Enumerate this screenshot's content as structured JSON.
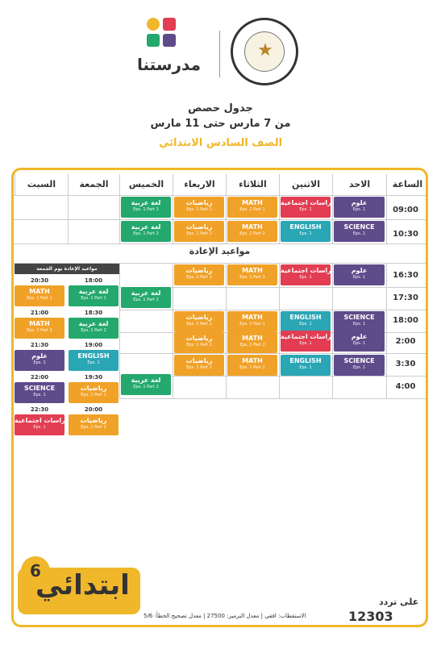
{
  "header": {
    "brand_name": "مدرستنا",
    "ministry_seal_text": "MINISTRY OF EDUCATION AND TECHNICAL EDUCATION",
    "title_line1": "جدول حصص",
    "title_line2": "من 7 مارس حتى 11 مارس",
    "title_line3": "الصف السادس الابتدائي"
  },
  "columns": [
    "الساعة",
    "الاحد",
    "الاثنين",
    "الثلاثاء",
    "الاربعاء",
    "الخميس",
    "الجمعة",
    "السبت"
  ],
  "main_times": [
    "09:00",
    "10:30"
  ],
  "main_cells": [
    {
      "name": "علوم",
      "ep": "Eps. 1"
    },
    {
      "name": "دراسات اجتماعية",
      "ep": "Eps. 1"
    },
    {
      "name": "MATH",
      "ep": "Eps. 1 Part 1"
    },
    {
      "name": "رياضيات",
      "ep": "Eps. 1 Part 1"
    },
    {
      "name": "لغة عربية",
      "ep": "Eps. 1 Part 1"
    },
    {
      "name": "SCIENCE",
      "ep": "Eps. 1"
    },
    {
      "name": "ENGLISH",
      "ep": "Eps. 1"
    },
    {
      "name": "MATH",
      "ep": "Eps. 1 Part 2"
    },
    {
      "name": "رياضيات",
      "ep": "Eps. 1 Part 2"
    },
    {
      "name": "لغة عربية",
      "ep": "Eps. 1 Part 2"
    }
  ],
  "rerun": {
    "title": "مواعيد الإعادة",
    "times": [
      "16:30",
      "17:30",
      "18:00",
      "2:00",
      "3:30",
      "4:00"
    ],
    "cells": [
      {
        "name": "علوم",
        "ep": "Eps. 1"
      },
      {
        "name": "دراسات اجتماعية",
        "ep": "Eps. 1"
      },
      {
        "name": "MATH",
        "ep": "Eps. 1 Part 1"
      },
      {
        "name": "رياضيات",
        "ep": "Eps. 1 Part 1"
      },
      {
        "name": "لغة عربية",
        "ep": "Eps. 1 Part 1"
      },
      {
        "name": "SCIENCE",
        "ep": "Eps. 1"
      },
      {
        "name": "ENGLISH",
        "ep": "Eps. 1"
      },
      {
        "name": "MATH",
        "ep": "Eps. 1 Part 1"
      },
      {
        "name": "رياضيات",
        "ep": "Eps. 1 Part 1"
      },
      {
        "name": "علوم",
        "ep": "Eps. 1"
      },
      {
        "name": "دراسات اجتماعية",
        "ep": "Eps. 1"
      },
      {
        "name": "MATH",
        "ep": "Eps. 1 Part 2"
      },
      {
        "name": "رياضيات",
        "ep": "Eps. 1 Part 2"
      },
      {
        "name": "SCIENCE",
        "ep": "Eps. 1"
      },
      {
        "name": "ENGLISH",
        "ep": "Eps. 1"
      },
      {
        "name": "MATH",
        "ep": "Eps. 1 Part 2"
      },
      {
        "name": "رياضيات",
        "ep": "Eps. 1 Part 2"
      },
      {
        "name": "لغة عربية",
        "ep": "Eps. 1 Part 2"
      }
    ]
  },
  "friday_sat": {
    "title": "مواعيد الإعادة يوم الجمعة",
    "fri_times": [
      "18:00",
      "18:30",
      "19:00",
      "19:30",
      "20:00"
    ],
    "sat_times": [
      "20:30",
      "21:00",
      "21:30",
      "22:00",
      "22:30"
    ],
    "fri_cells": [
      {
        "name": "لغة عربية",
        "ep": "Eps. 1 Part 1"
      },
      {
        "name": "لغة عربية",
        "ep": "Eps. 1 Part 2"
      },
      {
        "name": "ENGLISH",
        "ep": "Eps. 1"
      },
      {
        "name": "رياضيات",
        "ep": "Eps. 1 Part 1"
      },
      {
        "name": "رياضيات",
        "ep": "Eps. 1 Part 2"
      }
    ],
    "sat_cells": [
      {
        "name": "MATH",
        "ep": "Eps. 1 Part 1"
      },
      {
        "name": "MATH",
        "ep": "Eps. 1 Part 2"
      },
      {
        "name": "علوم",
        "ep": "Eps. 1"
      },
      {
        "name": "SCIENCE",
        "ep": "Eps. 1"
      },
      {
        "name": "دراسات اجتماعية",
        "ep": "Eps. 1"
      }
    ]
  },
  "footer": {
    "badge_text": "ابتدائي",
    "badge_number": "6",
    "channel_label": "على تردد",
    "channel_number": "12303",
    "reception_note": "الاستقطاب: افقي | معدل الترميز: 27500 | معدل تصحيح الخطأ: 5/6"
  },
  "colors": {
    "science": "#5e4b8a",
    "social": "#e23d52",
    "english": "#2aa6b5",
    "math": "#f0a127",
    "arabic": "#24a86d",
    "accent": "#f0b72a"
  }
}
